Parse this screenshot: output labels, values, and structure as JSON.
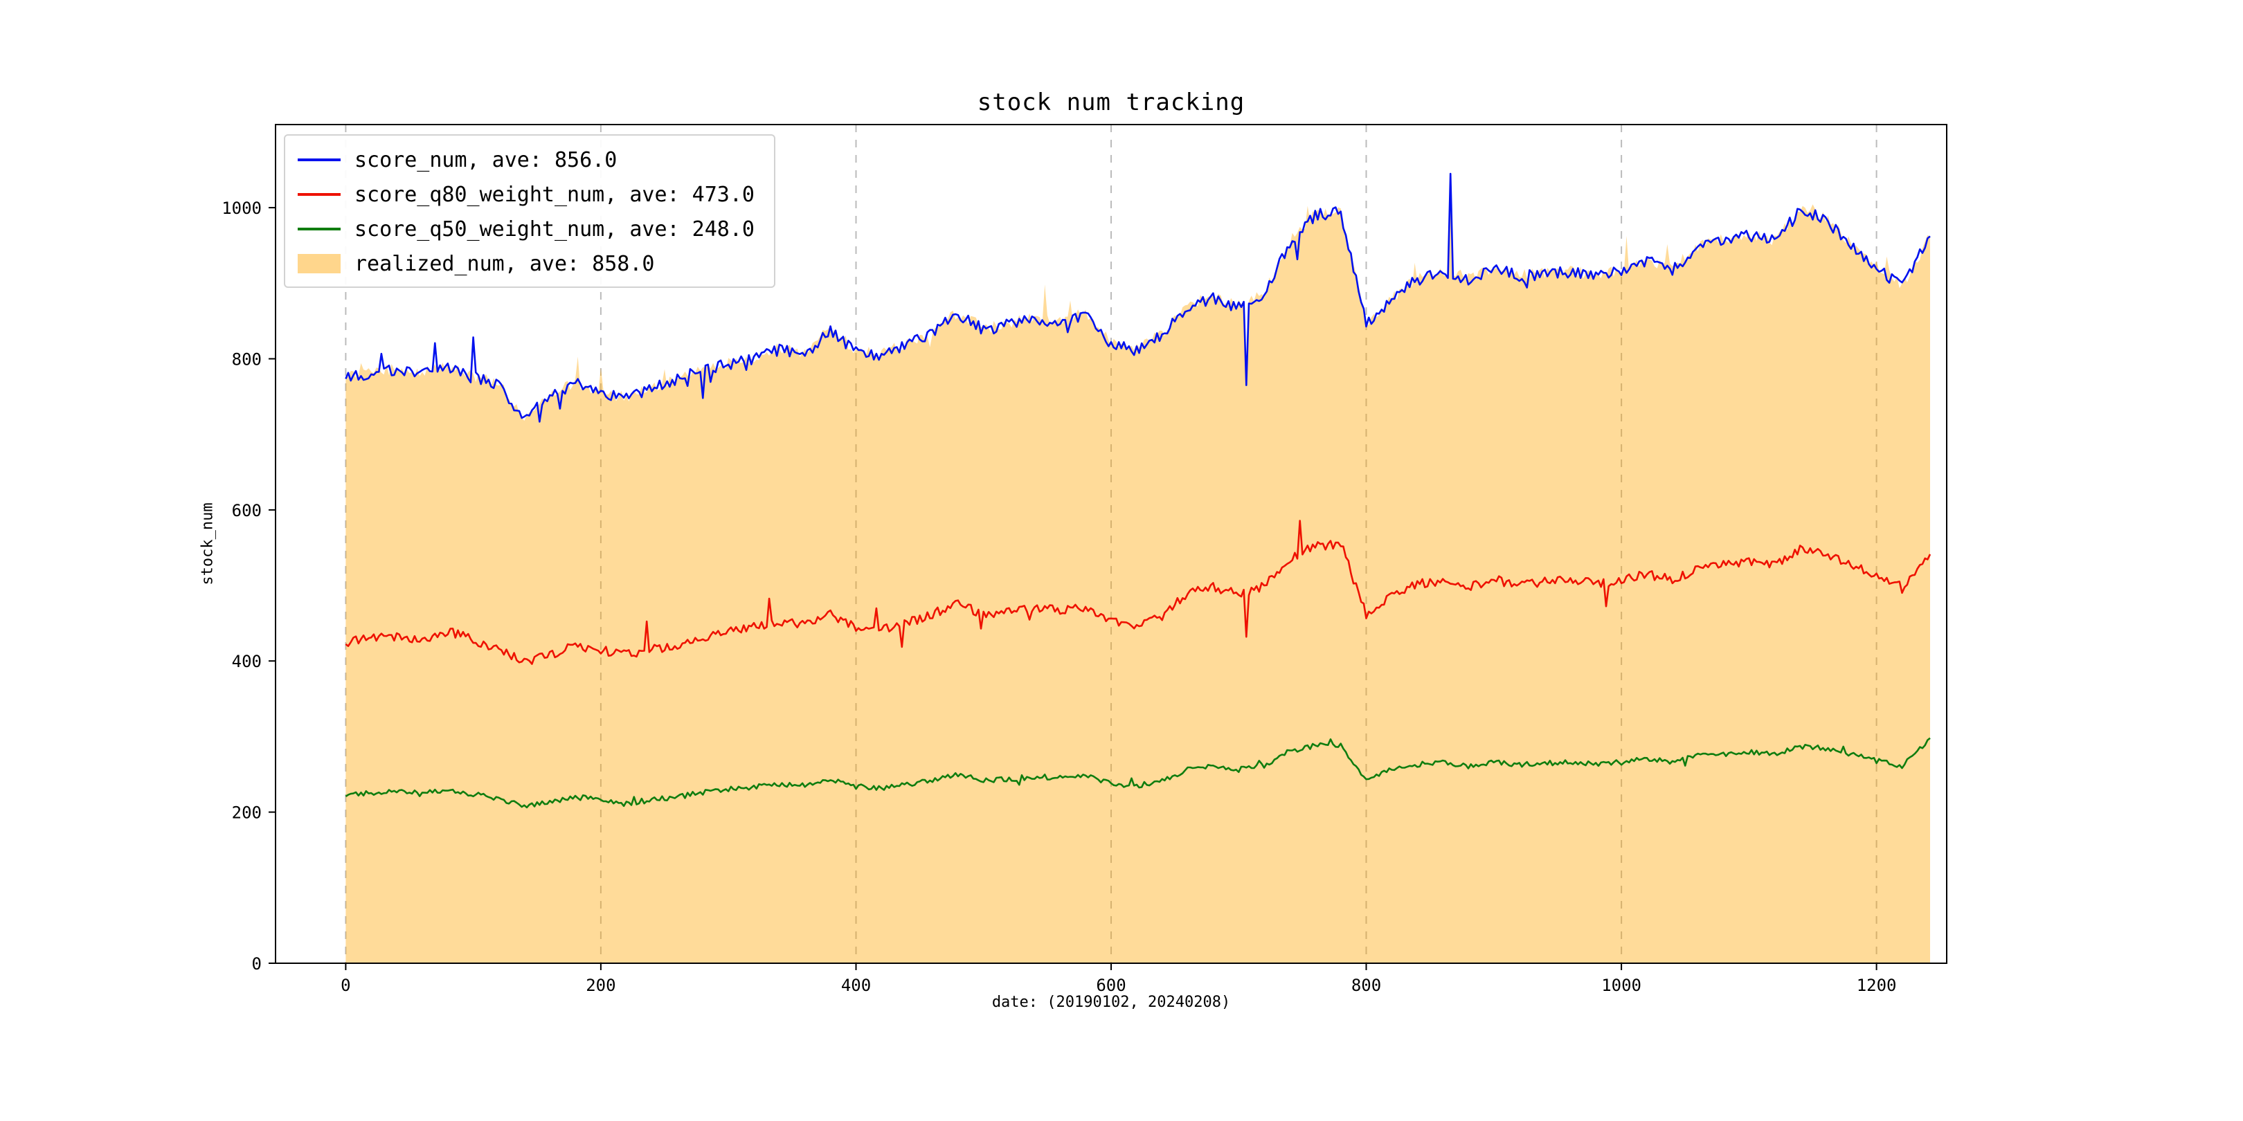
{
  "legend": [
    {
      "label": "score_num, ave: 856.0",
      "color": "#0011ee",
      "type": "line"
    },
    {
      "label": "score_q80_weight_num, ave: 473.0",
      "color": "#ee1100",
      "type": "line"
    },
    {
      "label": "score_q50_weight_num, ave: 248.0",
      "color": "#0f7d0f",
      "type": "line"
    },
    {
      "label": "realized_num, ave: 858.0",
      "color": "#ffa500",
      "type": "patch",
      "opacity": 0.42
    }
  ],
  "chart_data": {
    "type": "line",
    "title": "stock num tracking",
    "xlabel": "date: (20190102, 20240208)",
    "ylabel": "stock_num",
    "xlim": [
      -55,
      1255
    ],
    "ylim": [
      0,
      1110
    ],
    "xticks": [
      0,
      200,
      400,
      600,
      800,
      1000,
      1200
    ],
    "yticks": [
      0,
      200,
      400,
      600,
      800,
      1000
    ],
    "grid": "vertical-dashed",
    "legend_position": "upper-left",
    "x_anchors": [
      0,
      20,
      40,
      60,
      80,
      100,
      120,
      140,
      160,
      180,
      200,
      220,
      240,
      260,
      280,
      300,
      320,
      340,
      360,
      380,
      400,
      420,
      440,
      460,
      480,
      500,
      520,
      540,
      560,
      580,
      600,
      620,
      640,
      660,
      680,
      700,
      720,
      740,
      760,
      780,
      800,
      820,
      840,
      860,
      880,
      900,
      920,
      940,
      960,
      980,
      1000,
      1020,
      1040,
      1060,
      1080,
      1100,
      1120,
      1140,
      1160,
      1180,
      1200,
      1220,
      1240
    ],
    "series": [
      {
        "name": "score_num",
        "ave": 856.0,
        "color": "#0011ee",
        "noise": 8,
        "spike": 55,
        "spikes": [
          [
            866,
            1045
          ],
          [
            706,
            765
          ]
        ],
        "values": [
          775,
          782,
          785,
          780,
          788,
          775,
          765,
          722,
          748,
          768,
          752,
          748,
          760,
          772,
          785,
          792,
          800,
          812,
          805,
          840,
          808,
          805,
          818,
          835,
          860,
          838,
          845,
          852,
          850,
          858,
          820,
          812,
          830,
          870,
          880,
          868,
          885,
          955,
          990,
          995,
          845,
          878,
          905,
          915,
          905,
          920,
          908,
          912,
          915,
          908,
          915,
          930,
          918,
          945,
          958,
          962,
          955,
          995,
          985,
          950,
          920,
          895,
          955
        ]
      },
      {
        "name": "score_q80_weight_num",
        "ave": 473.0,
        "color": "#ee1100",
        "noise": 6,
        "spike": 45,
        "spikes": [
          [
            706,
            432
          ]
        ],
        "values": [
          425,
          430,
          432,
          428,
          440,
          428,
          415,
          398,
          408,
          420,
          415,
          408,
          415,
          422,
          432,
          440,
          445,
          452,
          448,
          462,
          445,
          442,
          450,
          462,
          478,
          460,
          465,
          470,
          468,
          472,
          452,
          448,
          460,
          490,
          498,
          488,
          500,
          535,
          552,
          555,
          462,
          488,
          502,
          505,
          498,
          508,
          500,
          505,
          508,
          502,
          508,
          515,
          508,
          522,
          528,
          532,
          528,
          548,
          542,
          528,
          512,
          498,
          540
        ]
      },
      {
        "name": "score_q50_weight_num",
        "ave": 248.0,
        "color": "#0f7d0f",
        "noise": 3.5,
        "spike": 14,
        "spikes": [],
        "values": [
          222,
          226,
          228,
          224,
          230,
          224,
          218,
          208,
          214,
          220,
          216,
          212,
          216,
          220,
          226,
          230,
          233,
          237,
          235,
          242,
          234,
          232,
          236,
          242,
          250,
          241,
          244,
          247,
          246,
          248,
          237,
          235,
          241,
          257,
          261,
          256,
          262,
          280,
          288,
          289,
          242,
          256,
          263,
          265,
          261,
          266,
          262,
          265,
          266,
          263,
          266,
          270,
          266,
          274,
          277,
          279,
          277,
          287,
          284,
          277,
          268,
          261,
          292
        ]
      },
      {
        "name": "realized_num",
        "ave": 858.0,
        "color": "#ffa500",
        "fill": true,
        "opacity": 0.4,
        "noise": 8,
        "spike": 40,
        "spikes": [
          [
            866,
            1040
          ],
          [
            706,
            770
          ]
        ],
        "values": [
          777,
          784,
          786,
          781,
          790,
          777,
          766,
          724,
          750,
          770,
          754,
          750,
          762,
          774,
          787,
          794,
          802,
          814,
          807,
          842,
          810,
          807,
          820,
          837,
          862,
          840,
          847,
          854,
          852,
          860,
          822,
          814,
          832,
          872,
          882,
          870,
          887,
          957,
          992,
          997,
          847,
          880,
          907,
          917,
          907,
          922,
          910,
          914,
          917,
          910,
          917,
          932,
          920,
          947,
          960,
          964,
          957,
          997,
          987,
          952,
          922,
          897,
          957
        ]
      }
    ]
  }
}
